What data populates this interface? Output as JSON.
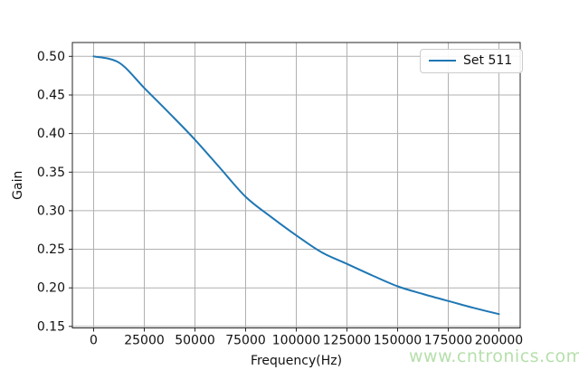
{
  "figure": {
    "background": "#ffffff"
  },
  "watermark": {
    "text": "www.cntronics.com",
    "color": "#b6dfab"
  },
  "chart_data": {
    "type": "line",
    "title": "",
    "xlabel": "Frequency(Hz)",
    "ylabel": "Gain",
    "grid": true,
    "legend_position": "upper right",
    "xlim": [
      -10500,
      210500
    ],
    "ylim": [
      0.148,
      0.518
    ],
    "x_ticks": [
      0,
      25000,
      50000,
      75000,
      100000,
      125000,
      150000,
      175000,
      200000
    ],
    "x_tick_labels": [
      "0",
      "25000",
      "50000",
      "75000",
      "100000",
      "125000",
      "150000",
      "175000",
      "200000"
    ],
    "y_ticks": [
      0.15,
      0.2,
      0.25,
      0.3,
      0.35,
      0.4,
      0.45,
      0.5
    ],
    "y_tick_labels": [
      "0.15",
      "0.20",
      "0.25",
      "0.30",
      "0.35",
      "0.40",
      "0.45",
      "0.50"
    ],
    "grid_color": "#b0b0b0",
    "axis_color": "#262626",
    "series": [
      {
        "name": "Set 511",
        "color": "#1f77b4",
        "x": [
          0,
          12500,
          25000,
          37500,
          50000,
          62500,
          75000,
          87500,
          100000,
          112500,
          125000,
          137500,
          150000,
          162500,
          175000,
          187500,
          200000
        ],
        "y": [
          0.5,
          0.492,
          0.459,
          0.426,
          0.392,
          0.355,
          0.318,
          0.292,
          0.268,
          0.246,
          0.231,
          0.216,
          0.202,
          0.192,
          0.183,
          0.174,
          0.166
        ]
      }
    ]
  }
}
